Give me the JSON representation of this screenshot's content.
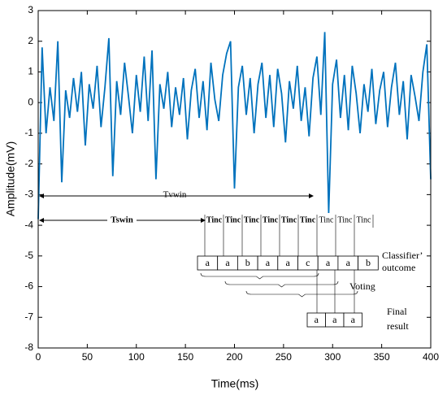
{
  "chart_data": {
    "type": "line",
    "xlabel": "Time(ms)",
    "ylabel": "Amplitude(mV)",
    "x": [
      0,
      4,
      8,
      12,
      16,
      20,
      24,
      28,
      32,
      36,
      40,
      44,
      48,
      52,
      56,
      60,
      64,
      68,
      72,
      76,
      80,
      84,
      88,
      92,
      96,
      100,
      104,
      108,
      112,
      116,
      120,
      124,
      128,
      132,
      136,
      140,
      144,
      148,
      152,
      156,
      160,
      164,
      168,
      172,
      176,
      180,
      184,
      188,
      192,
      196,
      200,
      204,
      208,
      212,
      216,
      220,
      224,
      228,
      232,
      236,
      240,
      244,
      248,
      252,
      256,
      260,
      264,
      268,
      272,
      276,
      280,
      284,
      288,
      292,
      296,
      300,
      304,
      308,
      312,
      316,
      320,
      324,
      328,
      332,
      336,
      340,
      344,
      348,
      352,
      356,
      360,
      364,
      368,
      372,
      376,
      380,
      384,
      388,
      392,
      396,
      400
    ],
    "series": [
      {
        "color": "#0072BD",
        "values": [
          -3.8,
          1.8,
          -1.0,
          0.5,
          -0.6,
          2.0,
          -2.6,
          0.4,
          -0.5,
          0.8,
          -0.3,
          1.0,
          -1.4,
          0.6,
          -0.2,
          1.2,
          -0.8,
          0.5,
          2.1,
          -2.4,
          0.7,
          -0.4,
          1.3,
          0.2,
          -1.0,
          0.9,
          -0.3,
          1.5,
          -0.6,
          1.7,
          -2.5,
          0.6,
          -0.2,
          1.0,
          -0.8,
          0.5,
          -0.4,
          0.8,
          -1.2,
          0.4,
          1.1,
          -0.5,
          0.7,
          -0.9,
          1.3,
          0.1,
          -0.6,
          0.9,
          1.6,
          2.0,
          -2.8,
          0.5,
          1.2,
          -0.4,
          0.8,
          -1.0,
          0.6,
          1.3,
          -0.5,
          0.9,
          -0.8,
          1.1,
          0.3,
          -1.3,
          0.7,
          -0.2,
          1.2,
          -0.6,
          0.5,
          -1.1,
          0.8,
          1.5,
          -0.4,
          2.3,
          -3.6,
          0.6,
          1.4,
          -0.5,
          0.9,
          -0.9,
          1.2,
          0.3,
          -1.0,
          0.6,
          -0.3,
          1.1,
          -0.7,
          0.4,
          1.0,
          -0.8,
          0.5,
          1.3,
          -0.4,
          0.7,
          -1.2,
          0.9,
          0.2,
          -0.6,
          1.0,
          1.9,
          -2.5
        ]
      }
    ],
    "xlim": [
      0,
      400
    ],
    "ylim": [
      -8,
      3
    ],
    "xticks": [
      0,
      50,
      100,
      150,
      200,
      250,
      300,
      350,
      400
    ],
    "yticks": [
      -8,
      -7,
      -6,
      -5,
      -4,
      -3,
      -2,
      -1,
      0,
      1,
      2,
      3
    ],
    "annotations": {
      "twin": "Tvwin",
      "tswin": "Tswin",
      "tinc": [
        "Tinc",
        "Tinc",
        "Tinc",
        "Tinc",
        "Tinc",
        "Tinc",
        "Tinc",
        "Tinc",
        "Tinc"
      ],
      "outcomes": [
        "a",
        "a",
        "b",
        "a",
        "a",
        "c",
        "a",
        "a",
        "b"
      ],
      "classifier_label": [
        "Classifier’",
        "outcome"
      ],
      "voting": "Voting",
      "final": [
        "a",
        "a",
        "a"
      ],
      "final_label": [
        "Final",
        "result"
      ]
    }
  }
}
